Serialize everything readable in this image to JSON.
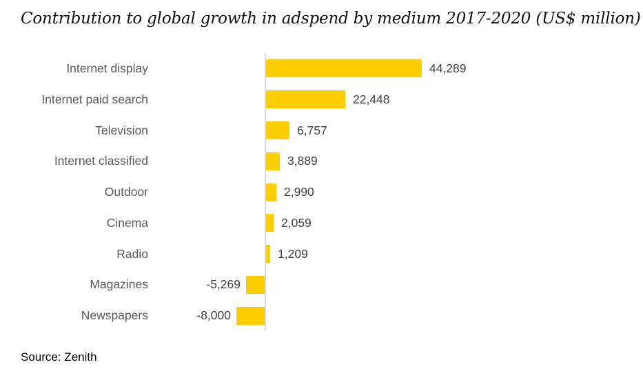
{
  "chart_data": {
    "type": "bar",
    "orientation": "horizontal",
    "title": "Contribution to global growth in adspend by medium 2017-2020 (US$ million)",
    "categories": [
      "Internet display",
      "Internet paid search",
      "Television",
      "Internet classified",
      "Outdoor",
      "Cinema",
      "Radio",
      "Magazines",
      "Newspapers"
    ],
    "values": [
      44289,
      22448,
      6757,
      3889,
      2990,
      2059,
      1209,
      -5269,
      -8000
    ],
    "value_labels": [
      "44,289",
      "22,448",
      "6,757",
      "3,889",
      "2,990",
      "2,059",
      "1,209",
      "-5,269",
      "-8,000"
    ],
    "xlim": [
      -8000,
      44289
    ],
    "grid": false,
    "legend": false,
    "xlabel": "",
    "ylabel": "",
    "source": "Source: Zenith",
    "colors": {
      "bar": "#FFCE00",
      "axis": "#D9D9D9",
      "category_label": "#595959",
      "value_label": "#404040",
      "title": "#111111",
      "source": "#000000"
    }
  }
}
